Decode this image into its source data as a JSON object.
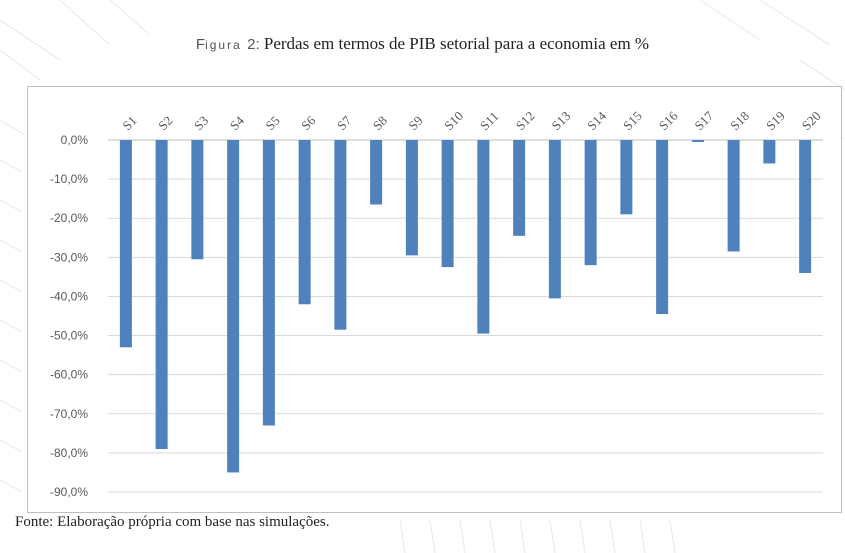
{
  "figure": {
    "label_first": "F",
    "label_rest": "igura",
    "number": "2:",
    "title": "Perdas em termos de PIB setorial para a economia em %",
    "source": "Fonte: Elaboração própria com base nas simulações."
  },
  "colors": {
    "bar": "#4f81bd",
    "grid": "#d9d9d9",
    "text": "#595959"
  },
  "chart_data": {
    "type": "bar",
    "title": "Perdas em termos de PIB setorial para a economia em %",
    "xlabel": "",
    "ylabel": "",
    "categories": [
      "S1",
      "S2",
      "S3",
      "S4",
      "S5",
      "S6",
      "S7",
      "S8",
      "S9",
      "S10",
      "S11",
      "S12",
      "S13",
      "S14",
      "S15",
      "S16",
      "S17",
      "S18",
      "S19",
      "S20"
    ],
    "values": [
      -53.0,
      -79.0,
      -30.5,
      -85.0,
      -73.0,
      -42.0,
      -48.5,
      -16.5,
      -29.5,
      -32.5,
      -49.5,
      -24.5,
      -40.5,
      -32.0,
      -19.0,
      -44.5,
      -0.5,
      -28.5,
      -6.0,
      -34.0
    ],
    "ylim": [
      -90,
      0
    ],
    "yticks": [
      0,
      -10,
      -20,
      -30,
      -40,
      -50,
      -60,
      -70,
      -80,
      -90
    ],
    "ytick_labels": [
      "0,0%",
      "-10,0%",
      "-20,0%",
      "-30,0%",
      "-40,0%",
      "-50,0%",
      "-60,0%",
      "-70,0%",
      "-80,0%",
      "-90,0%"
    ],
    "category_axis_position": "top",
    "grid": true,
    "legend": false
  }
}
